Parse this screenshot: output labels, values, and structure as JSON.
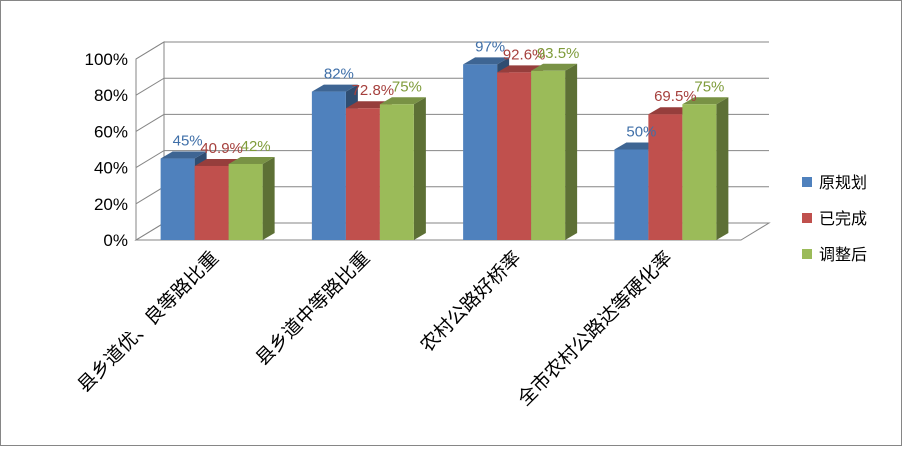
{
  "chart_data": {
    "type": "bar",
    "title": "",
    "xlabel": "",
    "ylabel": "",
    "ylim": [
      0,
      100
    ],
    "yticks": [
      "0%",
      "20%",
      "40%",
      "60%",
      "80%",
      "100%"
    ],
    "grid": true,
    "three_d": true,
    "legend_position": "right",
    "categories": [
      "县乡道优、良等路比重",
      "县乡道中等路比重",
      "农村公路好桥率",
      "全市农村公路达等硬化率"
    ],
    "series": [
      {
        "name": "原规划",
        "color": "#4F81BD",
        "values": [
          45,
          82,
          97,
          50
        ],
        "labels": [
          "45%",
          "82%",
          "97%",
          "50%"
        ],
        "label_color": "#3F6FA8"
      },
      {
        "name": "已完成",
        "color": "#C0504D",
        "values": [
          40.9,
          72.8,
          92.6,
          69.5
        ],
        "labels": [
          "40.9%",
          "72.8%",
          "92.6%",
          "69.5%"
        ],
        "label_color": "#A5403D"
      },
      {
        "name": "调整后",
        "color": "#9BBB59",
        "values": [
          42,
          75,
          93.5,
          75
        ],
        "labels": [
          "42%",
          "75%",
          "93.5%",
          "75%"
        ],
        "label_color": "#7F9C3B"
      }
    ]
  }
}
